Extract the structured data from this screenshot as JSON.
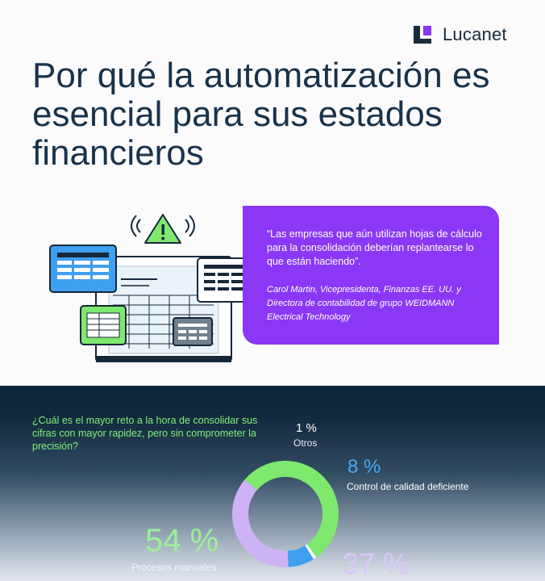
{
  "brand": {
    "name": "Lucanet"
  },
  "headline": "Por qué la automatización es esencial para sus estados financieros",
  "quote": {
    "text": "“Las empresas que aún utilizan hojas de cálculo para la consolidación deberían replantearse lo que están haciendo”.",
    "attribution": "Carol Martin, Vicepresidenta, Finanzas EE. UU. y Directora de contabilidad de grupo WEIDMANN Electrical Technology"
  },
  "stats": {
    "question": "¿Cuál es el mayor reto a la hora de consolidar sus cifras con mayor rapidez, pero sin comprometer la precisión?",
    "items": [
      {
        "pct": "54 %",
        "label": "Procesos manuales"
      },
      {
        "pct": "8 %",
        "label": "Control de calidad deficiente"
      },
      {
        "pct": "1 %",
        "label": "Otros"
      },
      {
        "pct": "37 %",
        "label": ""
      }
    ]
  },
  "chart_data": {
    "type": "pie",
    "title": "",
    "categories": [
      "Procesos manuales",
      "Control de calidad deficiente",
      "Otros",
      ""
    ],
    "values": [
      54,
      8,
      1,
      37
    ],
    "colors": [
      "#7ee86f",
      "#3f9ff0",
      "#ffffff",
      "#cdb3f6"
    ]
  },
  "colors": {
    "brand_purple": "#8a38f5",
    "headline": "#19324a",
    "panel_dark": "#0e2537",
    "accent_green": "#7ef07a",
    "accent_blue": "#49a8f3"
  }
}
